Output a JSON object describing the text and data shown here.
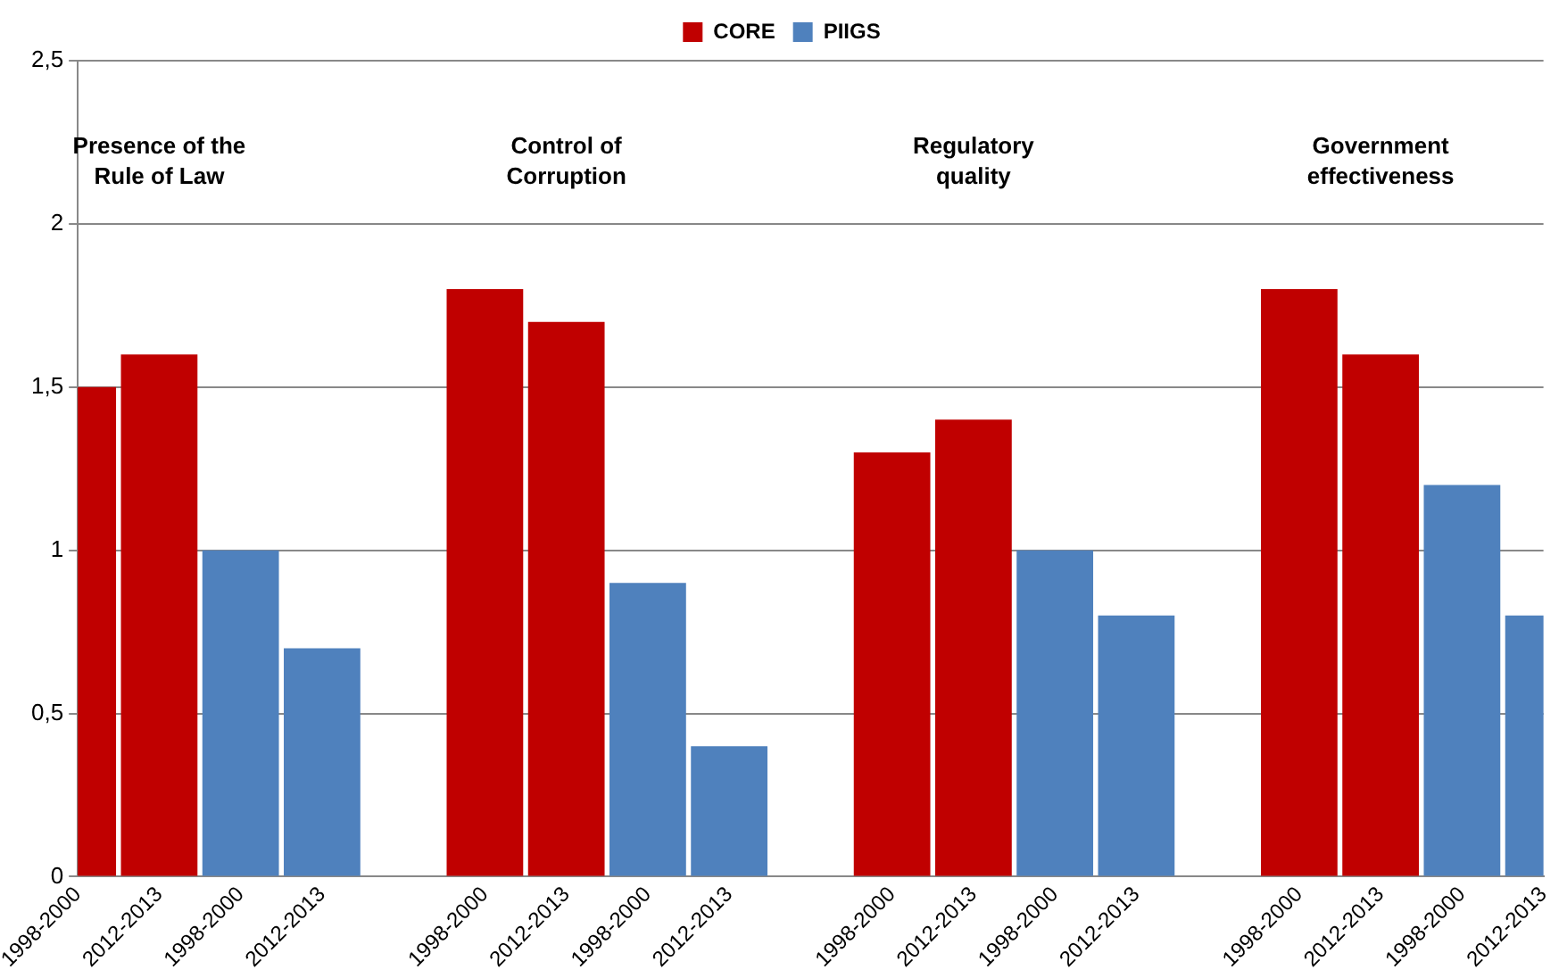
{
  "chart_data": {
    "type": "bar",
    "stacked": true,
    "categories": [
      "1998-2000",
      "2012-2013",
      "1998-2000",
      "2012-2013",
      null,
      "1998-2000",
      "2012-2013",
      "1998-2000",
      "2012-2013",
      null,
      "1998-2000",
      "2012-2013",
      "1998-2000",
      "2012-2013",
      null,
      "1998-2000",
      "2012-2013",
      "1998-2000",
      "2012-2013"
    ],
    "series": [
      {
        "name": "CORE",
        "color": "#c00000",
        "values": [
          1.5,
          1.6,
          null,
          null,
          null,
          1.8,
          1.7,
          null,
          null,
          null,
          1.3,
          1.4,
          null,
          null,
          null,
          1.8,
          1.6,
          null,
          null
        ]
      },
      {
        "name": "PIIGS",
        "color": "#4f81bd",
        "values": [
          null,
          null,
          1.0,
          0.7,
          null,
          null,
          null,
          0.9,
          0.4,
          null,
          null,
          null,
          1.0,
          0.8,
          null,
          null,
          null,
          1.2,
          0.8
        ]
      }
    ],
    "annotations": [
      "Presence of the\nRule of Law",
      "Control of\nCorruption",
      "Regulatory\nquality",
      "Government\neffectiveness"
    ],
    "ylim": [
      0,
      2.5
    ],
    "yticks": [
      0,
      {
        "value": 0.5,
        "label": "0,5"
      },
      1,
      {
        "value": 1.5,
        "label": "1,5"
      },
      2,
      {
        "value": 2.5,
        "label": "2,5"
      }
    ],
    "grid": "y",
    "legend": "top"
  }
}
